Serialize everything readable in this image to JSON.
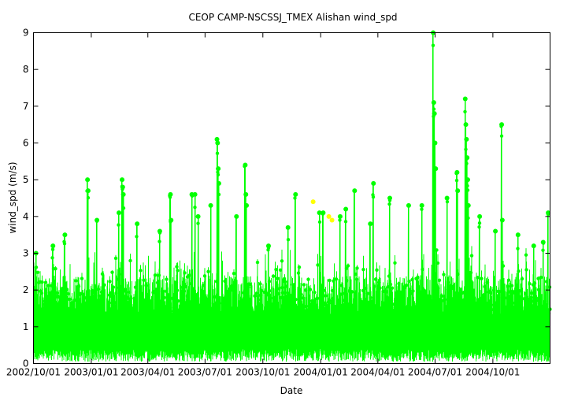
{
  "chart_data": {
    "type": "scatter",
    "title": "CEOP CAMP-NSCSSJ_TMEX Alishan  wind_spd",
    "xlabel": "Date",
    "ylabel": "wind_spd (m/s)",
    "xlim": [
      "2002-10-01",
      "2004-12-31"
    ],
    "ylim": [
      0,
      9
    ],
    "x_ticks": [
      "2002/10/01",
      "2003/01/01",
      "2003/04/01",
      "2003/07/01",
      "2003/10/01",
      "2004/01/01",
      "2004/04/01",
      "2004/07/01",
      "2004/10/01"
    ],
    "y_ticks": [
      0,
      1,
      2,
      3,
      4,
      5,
      6,
      7,
      8,
      9
    ],
    "grid": false,
    "colors": {
      "main": "#00ff00",
      "flagged": "#ffff00"
    },
    "series": [
      {
        "color": "#00ff00",
        "style": "line+points",
        "points": [
          [
            "2002-10-05",
            3.0
          ],
          [
            "2002-11-01",
            3.2
          ],
          [
            "2002-11-20",
            3.5
          ],
          [
            "2002-12-26",
            5.0
          ],
          [
            "2002-12-27",
            4.7
          ],
          [
            "2003-01-10",
            3.9
          ],
          [
            "2003-02-14",
            4.1
          ],
          [
            "2003-02-19",
            5.0
          ],
          [
            "2003-02-20",
            4.8
          ],
          [
            "2003-02-21",
            4.6
          ],
          [
            "2003-03-15",
            3.8
          ],
          [
            "2003-04-20",
            3.6
          ],
          [
            "2003-05-07",
            4.6
          ],
          [
            "2003-05-08",
            3.9
          ],
          [
            "2003-06-10",
            4.6
          ],
          [
            "2003-06-15",
            4.6
          ],
          [
            "2003-06-20",
            4.0
          ],
          [
            "2003-07-10",
            4.3
          ],
          [
            "2003-07-20",
            6.1
          ],
          [
            "2003-07-21",
            6.0
          ],
          [
            "2003-07-22",
            5.3
          ],
          [
            "2003-07-23",
            4.9
          ],
          [
            "2003-08-20",
            4.0
          ],
          [
            "2003-09-03",
            5.4
          ],
          [
            "2003-09-04",
            4.6
          ],
          [
            "2003-09-05",
            4.3
          ],
          [
            "2003-10-10",
            3.2
          ],
          [
            "2003-11-10",
            3.7
          ],
          [
            "2003-11-22",
            4.6
          ],
          [
            "2003-12-30",
            4.1
          ],
          [
            "2004-01-05",
            4.1
          ],
          [
            "2004-02-01",
            4.0
          ],
          [
            "2004-02-10",
            4.2
          ],
          [
            "2004-02-24",
            4.7
          ],
          [
            "2004-03-20",
            3.8
          ],
          [
            "2004-03-25",
            4.9
          ],
          [
            "2004-04-20",
            4.5
          ],
          [
            "2004-05-20",
            4.3
          ],
          [
            "2004-06-10",
            4.3
          ],
          [
            "2004-06-28",
            9.0
          ],
          [
            "2004-06-29",
            7.1
          ],
          [
            "2004-06-30",
            6.8
          ],
          [
            "2004-07-01",
            6.0
          ],
          [
            "2004-07-02",
            5.3
          ],
          [
            "2004-07-20",
            4.5
          ],
          [
            "2004-08-05",
            5.2
          ],
          [
            "2004-08-06",
            4.7
          ],
          [
            "2004-08-18",
            7.2
          ],
          [
            "2004-08-19",
            6.5
          ],
          [
            "2004-08-20",
            6.1
          ],
          [
            "2004-08-21",
            5.6
          ],
          [
            "2004-08-22",
            5.0
          ],
          [
            "2004-08-23",
            4.3
          ],
          [
            "2004-09-10",
            4.0
          ],
          [
            "2004-10-05",
            3.6
          ],
          [
            "2004-10-15",
            6.5
          ],
          [
            "2004-10-16",
            3.9
          ],
          [
            "2004-11-10",
            3.5
          ],
          [
            "2004-12-05",
            3.2
          ],
          [
            "2004-12-20",
            3.3
          ],
          [
            "2004-12-28",
            4.1
          ]
        ]
      },
      {
        "color": "#ffff00",
        "style": "points",
        "points": [
          [
            "2003-12-20",
            4.4
          ],
          [
            "2004-01-14",
            4.0
          ],
          [
            "2004-01-19",
            3.9
          ]
        ]
      }
    ]
  }
}
